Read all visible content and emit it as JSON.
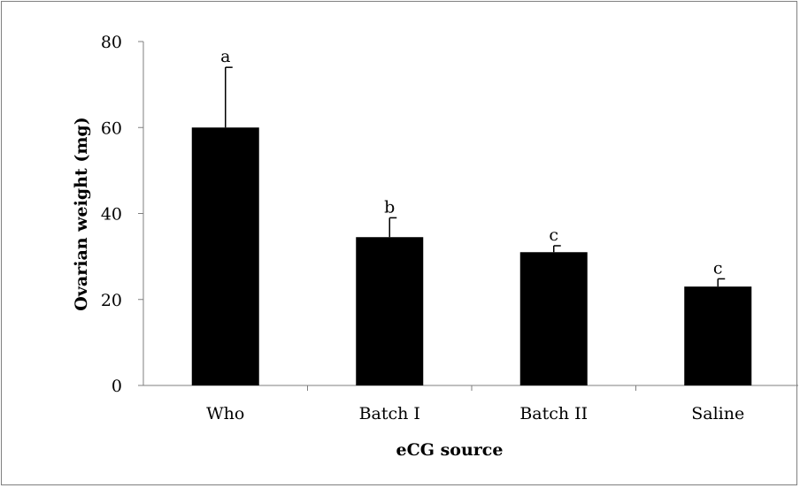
{
  "chart_data": {
    "type": "bar",
    "title": "",
    "xlabel": "eCG source",
    "ylabel": "Ovarian weight (mg)",
    "ylim": [
      0,
      80
    ],
    "yticks": [
      0,
      20,
      40,
      60,
      80
    ],
    "categories": [
      "Who",
      "Batch I",
      "Batch II",
      "Saline"
    ],
    "values": [
      60,
      34.5,
      31,
      23
    ],
    "errors": [
      14,
      4.5,
      1.5,
      1.8
    ],
    "significance_labels": [
      "a",
      "b",
      "c",
      "c"
    ],
    "bar_color": "#000000",
    "grid": false,
    "legend": "none"
  }
}
